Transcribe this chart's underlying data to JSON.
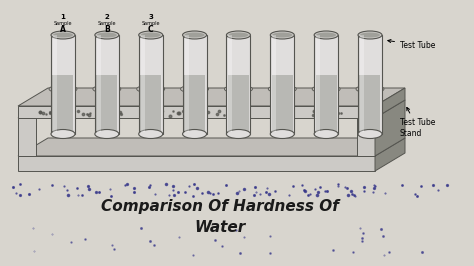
{
  "bg_color": "#d8d5ce",
  "paper_color": "#dedad4",
  "sketch_dark": "#555550",
  "sketch_mid": "#888880",
  "sketch_light": "#c0bdb8",
  "sketch_lighter": "#cccac6",
  "tube_inner": "#e0dedd",
  "tube_shadow": "#a0a09a",
  "liquid_color": "#b8b8b4",
  "n_tubes": 8,
  "labeled_tubes": [
    {
      "label1": "1",
      "label2": "Sample",
      "label3": "A"
    },
    {
      "label1": "2",
      "label2": "Sample",
      "label3": "B"
    },
    {
      "label1": "3",
      "label2": "Sample",
      "label3": "C"
    }
  ],
  "arrow_label1": "Test Tube",
  "arrow_label2": "Test Tube\nStand",
  "title_line1": "Comparison Of Hardness Of",
  "title_line2": "Water",
  "title_color": "#1a1a1a",
  "ink_dot_color": "#333388"
}
